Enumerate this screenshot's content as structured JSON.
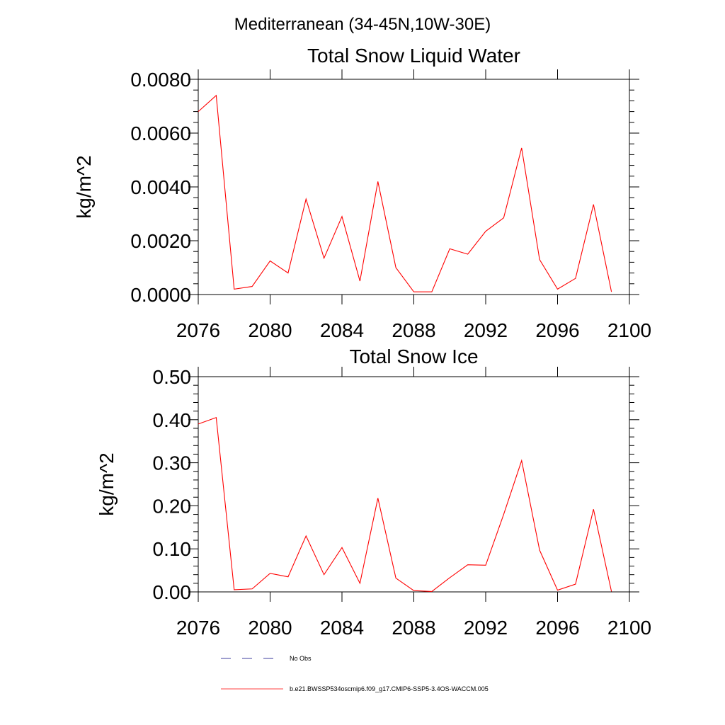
{
  "figure_title": "Mediterranean (34-45N,10W-30E)",
  "legend": {
    "placement": "bottom",
    "entries": [
      {
        "label": "No Obs",
        "color": "#000080",
        "style": "dashed"
      },
      {
        "label": "b.e21.BWSSP534oscmip6.f09_g17.CMIP6-SSP5-3.4OS-WACCM.005",
        "color": "#ff0000",
        "style": "solid"
      }
    ]
  },
  "chart_data": [
    {
      "type": "line",
      "title": "Total Snow Liquid Water",
      "xlabel": "",
      "ylabel": "kg/m^2",
      "xlim": [
        2076,
        2100
      ],
      "ylim": [
        0,
        0.008
      ],
      "xticks": [
        "2076",
        "2080",
        "2084",
        "2088",
        "2092",
        "2096",
        "2100"
      ],
      "yticks": [
        "0.0000",
        "0.0020",
        "0.0040",
        "0.0060",
        "0.0080"
      ],
      "grid": false,
      "x": [
        2076,
        2077,
        2078,
        2079,
        2080,
        2081,
        2082,
        2083,
        2084,
        2085,
        2086,
        2087,
        2088,
        2089,
        2090,
        2091,
        2092,
        2093,
        2094,
        2095,
        2096,
        2097,
        2098,
        2099
      ],
      "series": [
        {
          "color": "#ff0000",
          "values": [
            0.0068,
            0.0074,
            0.0002,
            0.0003,
            0.00125,
            0.0008,
            0.00355,
            0.00135,
            0.0029,
            0.0005,
            0.0042,
            0.001,
            0.0001,
            0.0001,
            0.0017,
            0.0015,
            0.00235,
            0.00285,
            0.00545,
            0.0013,
            0.0002,
            0.0006,
            0.00335,
            0.0001
          ]
        }
      ]
    },
    {
      "type": "line",
      "title": "Total Snow Ice",
      "xlabel": "",
      "ylabel": "kg/m^2",
      "xlim": [
        2076,
        2100
      ],
      "ylim": [
        0,
        0.5
      ],
      "xticks": [
        "2076",
        "2080",
        "2084",
        "2088",
        "2092",
        "2096",
        "2100"
      ],
      "yticks": [
        "0.00",
        "0.10",
        "0.20",
        "0.30",
        "0.40",
        "0.50"
      ],
      "grid": false,
      "x": [
        2076,
        2077,
        2078,
        2079,
        2080,
        2081,
        2082,
        2083,
        2084,
        2085,
        2086,
        2087,
        2088,
        2089,
        2090,
        2091,
        2092,
        2093,
        2094,
        2095,
        2096,
        2097,
        2098,
        2099
      ],
      "series": [
        {
          "color": "#ff0000",
          "values": [
            0.39,
            0.405,
            0.005,
            0.007,
            0.043,
            0.035,
            0.13,
            0.04,
            0.103,
            0.02,
            0.218,
            0.032,
            0.003,
            0.001,
            0.033,
            0.063,
            0.062,
            0.18,
            0.305,
            0.097,
            0.004,
            0.018,
            0.192,
            0.001
          ]
        }
      ]
    }
  ]
}
